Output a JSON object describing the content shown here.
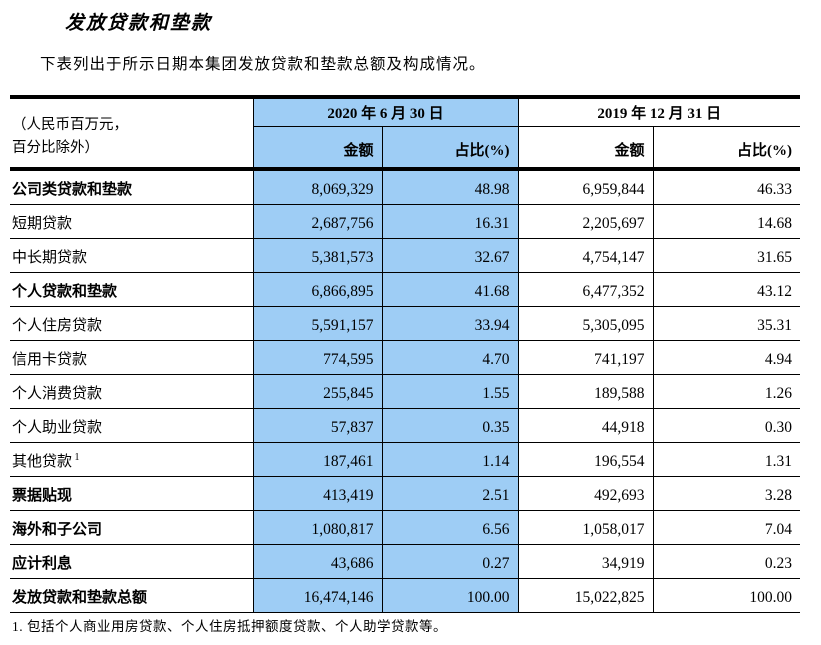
{
  "title": "发放贷款和垫款",
  "intro": "下表列出于所示日期本集团发放贷款和垫款总额及构成情况。",
  "colors": {
    "highlight_blue": "#9ECDF5",
    "border_black": "#000000"
  },
  "table": {
    "unit_note": [
      "（人民币百万元，",
      "百分比除外）"
    ],
    "col_groups": [
      "2020 年 6 月 30 日",
      "2019 年 12 月 31 日"
    ],
    "sub_headers": [
      "金额",
      "占比(%)",
      "金额",
      "占比(%)"
    ],
    "rows": [
      {
        "label": "公司类贷款和垫款",
        "bold": true,
        "values": [
          "8,069,329",
          "48.98",
          "6,959,844",
          "46.33"
        ]
      },
      {
        "label": "短期贷款",
        "bold": false,
        "values": [
          "2,687,756",
          "16.31",
          "2,205,697",
          "14.68"
        ]
      },
      {
        "label": "中长期贷款",
        "bold": false,
        "values": [
          "5,381,573",
          "32.67",
          "4,754,147",
          "31.65"
        ]
      },
      {
        "label": "个人贷款和垫款",
        "bold": true,
        "values": [
          "6,866,895",
          "41.68",
          "6,477,352",
          "43.12"
        ]
      },
      {
        "label": "个人住房贷款",
        "bold": false,
        "values": [
          "5,591,157",
          "33.94",
          "5,305,095",
          "35.31"
        ]
      },
      {
        "label": "信用卡贷款",
        "bold": false,
        "values": [
          "774,595",
          "4.70",
          "741,197",
          "4.94"
        ]
      },
      {
        "label": "个人消费贷款",
        "bold": false,
        "values": [
          "255,845",
          "1.55",
          "189,588",
          "1.26"
        ]
      },
      {
        "label": "个人助业贷款",
        "bold": false,
        "values": [
          "57,837",
          "0.35",
          "44,918",
          "0.30"
        ]
      },
      {
        "label": "其他贷款",
        "sup": "1",
        "bold": false,
        "values": [
          "187,461",
          "1.14",
          "196,554",
          "1.31"
        ]
      },
      {
        "label": "票据贴现",
        "bold": true,
        "values": [
          "413,419",
          "2.51",
          "492,693",
          "3.28"
        ]
      },
      {
        "label": "海外和子公司",
        "bold": true,
        "values": [
          "1,080,817",
          "6.56",
          "1,058,017",
          "7.04"
        ]
      },
      {
        "label": "应计利息",
        "bold": true,
        "values": [
          "43,686",
          "0.27",
          "34,919",
          "0.23"
        ]
      },
      {
        "label": "发放贷款和垫款总额",
        "bold": true,
        "values": [
          "16,474,146",
          "100.00",
          "15,022,825",
          "100.00"
        ]
      }
    ]
  },
  "footnote": "1.  包括个人商业用房贷款、个人住房抵押额度贷款、个人助学贷款等。"
}
